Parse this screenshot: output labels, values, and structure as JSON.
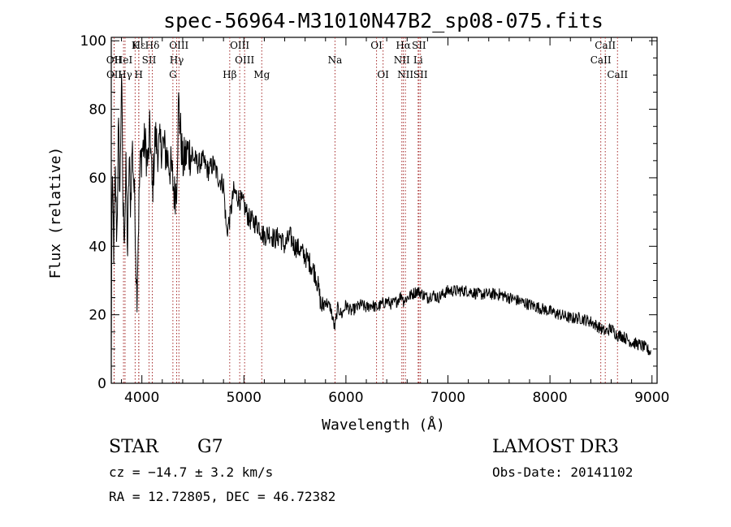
{
  "chart_data": {
    "type": "line",
    "title": "spec-56964-M31010N47B2_sp08-075.fits",
    "xlabel": "Wavelength (Å)",
    "ylabel": "Flux (relative)",
    "xlim": [
      3700,
      9050
    ],
    "ylim": [
      0,
      101
    ],
    "xticks": [
      4000,
      5000,
      6000,
      7000,
      8000,
      9000
    ],
    "yticks": [
      0,
      20,
      40,
      60,
      80,
      100
    ],
    "line_color": "#000000",
    "marker_color": "#a52a2a",
    "spectrum_anchors": [
      [
        3700,
        5
      ],
      [
        3705,
        50
      ],
      [
        3715,
        55
      ],
      [
        3725,
        38
      ],
      [
        3740,
        60
      ],
      [
        3755,
        42
      ],
      [
        3770,
        75
      ],
      [
        3785,
        55
      ],
      [
        3800,
        92
      ],
      [
        3815,
        50
      ],
      [
        3830,
        45
      ],
      [
        3845,
        62
      ],
      [
        3860,
        38
      ],
      [
        3875,
        66
      ],
      [
        3890,
        52
      ],
      [
        3905,
        70
      ],
      [
        3920,
        60
      ],
      [
        3935,
        48
      ],
      [
        3950,
        25
      ],
      [
        3965,
        45
      ],
      [
        3980,
        62
      ],
      [
        4000,
        68
      ],
      [
        4030,
        70
      ],
      [
        4060,
        64
      ],
      [
        4080,
        75
      ],
      [
        4102,
        55
      ],
      [
        4130,
        72
      ],
      [
        4160,
        68
      ],
      [
        4200,
        70
      ],
      [
        4250,
        66
      ],
      [
        4290,
        62
      ],
      [
        4320,
        55
      ],
      [
        4340,
        58
      ],
      [
        4360,
        82
      ],
      [
        4400,
        64
      ],
      [
        4450,
        68
      ],
      [
        4500,
        66
      ],
      [
        4550,
        64
      ],
      [
        4600,
        65
      ],
      [
        4650,
        62
      ],
      [
        4700,
        64
      ],
      [
        4750,
        60
      ],
      [
        4800,
        58
      ],
      [
        4830,
        44
      ],
      [
        4861,
        48
      ],
      [
        4900,
        56
      ],
      [
        4950,
        54
      ],
      [
        5000,
        52
      ],
      [
        5050,
        48
      ],
      [
        5100,
        47
      ],
      [
        5150,
        46
      ],
      [
        5175,
        44
      ],
      [
        5200,
        43
      ],
      [
        5250,
        44
      ],
      [
        5300,
        42
      ],
      [
        5350,
        43
      ],
      [
        5400,
        40
      ],
      [
        5450,
        43
      ],
      [
        5500,
        40
      ],
      [
        5550,
        39
      ],
      [
        5600,
        37
      ],
      [
        5650,
        35
      ],
      [
        5700,
        32
      ],
      [
        5730,
        28
      ],
      [
        5760,
        22
      ],
      [
        5800,
        24
      ],
      [
        5850,
        22
      ],
      [
        5890,
        16
      ],
      [
        5920,
        22
      ],
      [
        5960,
        20
      ],
      [
        6000,
        23
      ],
      [
        6050,
        21
      ],
      [
        6100,
        22
      ],
      [
        6150,
        23
      ],
      [
        6200,
        22
      ],
      [
        6250,
        23
      ],
      [
        6300,
        22
      ],
      [
        6350,
        23
      ],
      [
        6400,
        24
      ],
      [
        6450,
        23
      ],
      [
        6500,
        24
      ],
      [
        6550,
        26
      ],
      [
        6563,
        24
      ],
      [
        6600,
        25
      ],
      [
        6650,
        26
      ],
      [
        6700,
        27
      ],
      [
        6750,
        26
      ],
      [
        6800,
        25
      ],
      [
        6850,
        26
      ],
      [
        6900,
        25
      ],
      [
        6950,
        26
      ],
      [
        7000,
        27
      ],
      [
        7100,
        27
      ],
      [
        7200,
        27
      ],
      [
        7300,
        26
      ],
      [
        7400,
        26
      ],
      [
        7500,
        26
      ],
      [
        7600,
        25
      ],
      [
        7700,
        24
      ],
      [
        7800,
        23
      ],
      [
        7900,
        22
      ],
      [
        8000,
        21
      ],
      [
        8100,
        20
      ],
      [
        8200,
        19
      ],
      [
        8300,
        19
      ],
      [
        8400,
        18
      ],
      [
        8498,
        16
      ],
      [
        8542,
        15
      ],
      [
        8600,
        16
      ],
      [
        8662,
        14
      ],
      [
        8700,
        14
      ],
      [
        8800,
        12
      ],
      [
        8900,
        11
      ],
      [
        8950,
        10
      ],
      [
        8990,
        9
      ]
    ],
    "lines": [
      {
        "label": "Hε",
        "wave": 3970,
        "row": 1
      },
      {
        "label": "OII",
        "wave": 3727,
        "row": 2
      },
      {
        "label": "HeI",
        "wave": 3820,
        "row": 2
      },
      {
        "label": "K",
        "wave": 3934,
        "row": 1
      },
      {
        "label": "SII",
        "wave": 4070,
        "row": 2
      },
      {
        "label": "Hδ",
        "wave": 4102,
        "row": 1
      },
      {
        "label": "OIII",
        "wave": 4363,
        "row": 1
      },
      {
        "label": "Hγ",
        "wave": 4341,
        "row": 2
      },
      {
        "label": "OII",
        "wave": 3729,
        "row": 3
      },
      {
        "label": "Hγ",
        "wave": 3835,
        "row": 3
      },
      {
        "label": "H",
        "wave": 3969,
        "row": 3
      },
      {
        "label": "G",
        "wave": 4304,
        "row": 3
      },
      {
        "label": "OIII",
        "wave": 4959,
        "row": 1
      },
      {
        "label": "OIII",
        "wave": 5007,
        "row": 2
      },
      {
        "label": "Hβ",
        "wave": 4861,
        "row": 3
      },
      {
        "label": "Mg",
        "wave": 5175,
        "row": 3
      },
      {
        "label": "Na",
        "wave": 5893,
        "row": 2
      },
      {
        "label": "OI",
        "wave": 6300,
        "row": 1
      },
      {
        "label": "OI",
        "wave": 6364,
        "row": 3
      },
      {
        "label": "Hα",
        "wave": 6563,
        "row": 1
      },
      {
        "label": "SII",
        "wave": 6716,
        "row": 1
      },
      {
        "label": "NII",
        "wave": 6548,
        "row": 2
      },
      {
        "label": "Li",
        "wave": 6708,
        "row": 2
      },
      {
        "label": "NII",
        "wave": 6583,
        "row": 3
      },
      {
        "label": "SII",
        "wave": 6731,
        "row": 3
      },
      {
        "label": "CaII",
        "wave": 8542,
        "row": 1
      },
      {
        "label": "CaII",
        "wave": 8498,
        "row": 2
      },
      {
        "label": "CaII",
        "wave": 8662,
        "row": 3
      }
    ]
  },
  "info": {
    "class_label": "STAR",
    "subclass": "G7",
    "survey": "LAMOST DR3",
    "redshift": "cz = −14.7 ± 3.2 km/s",
    "obs_date": "Obs-Date: 20141102",
    "coords": "RA =  12.72805, DEC =  46.72382"
  }
}
